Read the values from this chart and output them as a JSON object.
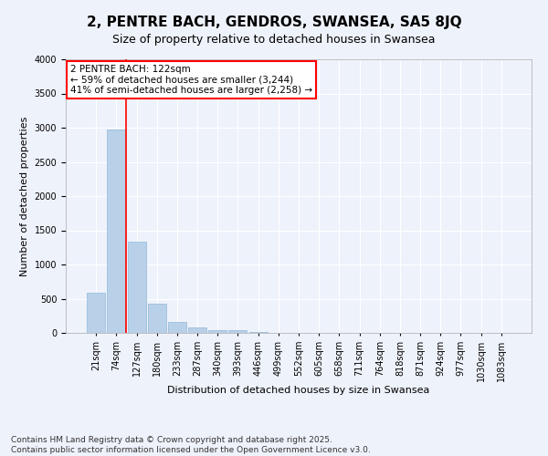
{
  "title": "2, PENTRE BACH, GENDROS, SWANSEA, SA5 8JQ",
  "subtitle": "Size of property relative to detached houses in Swansea",
  "xlabel": "Distribution of detached houses by size in Swansea",
  "ylabel": "Number of detached properties",
  "footer_line1": "Contains HM Land Registry data © Crown copyright and database right 2025.",
  "footer_line2": "Contains public sector information licensed under the Open Government Licence v3.0.",
  "categories": [
    "21sqm",
    "74sqm",
    "127sqm",
    "180sqm",
    "233sqm",
    "287sqm",
    "340sqm",
    "393sqm",
    "446sqm",
    "499sqm",
    "552sqm",
    "605sqm",
    "658sqm",
    "711sqm",
    "764sqm",
    "818sqm",
    "871sqm",
    "924sqm",
    "977sqm",
    "1030sqm",
    "1083sqm"
  ],
  "values": [
    590,
    2970,
    1340,
    430,
    165,
    80,
    45,
    35,
    15,
    0,
    0,
    0,
    0,
    0,
    0,
    0,
    0,
    0,
    0,
    0,
    0
  ],
  "bar_color": "#b8d0e8",
  "bar_edge_color": "#90b8d8",
  "vline_color": "red",
  "vline_position": 1.5,
  "annotation_text": "2 PENTRE BACH: 122sqm\n← 59% of detached houses are smaller (3,244)\n41% of semi-detached houses are larger (2,258) →",
  "annotation_box_color": "white",
  "annotation_box_edge_color": "red",
  "ylim": [
    0,
    4000
  ],
  "yticks": [
    0,
    500,
    1000,
    1500,
    2000,
    2500,
    3000,
    3500,
    4000
  ],
  "background_color": "#eef2fb",
  "grid_color": "white",
  "title_fontsize": 11,
  "subtitle_fontsize": 9,
  "axis_label_fontsize": 8,
  "tick_fontsize": 7,
  "footer_fontsize": 6.5,
  "annotation_fontsize": 7.5
}
